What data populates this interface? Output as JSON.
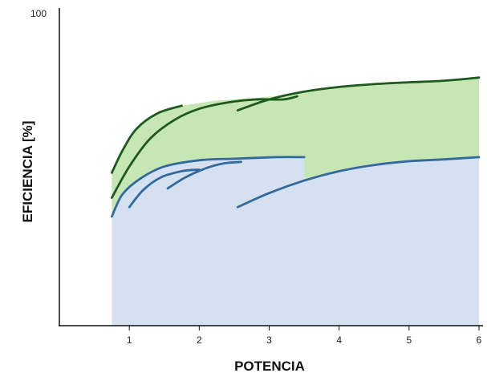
{
  "chart_data": {
    "type": "line",
    "title": "",
    "xlabel": "POTENCIA",
    "ylabel": "EFICIENCIA [%]",
    "xlim": [
      0,
      6
    ],
    "ylim": [
      0,
      100
    ],
    "x_ticks": [
      1,
      2,
      3,
      4,
      5,
      6
    ],
    "y_ticks": [
      100
    ],
    "grid": false,
    "legend": "none",
    "colors": {
      "green_fill": "#c6e6b3",
      "blue_fill": "#d5e1f1",
      "green_line": "#1e5a1e",
      "blue_line": "#336a9e"
    },
    "areas": [
      {
        "color": "#c6e6b3",
        "points": [
          [
            0.75,
            49
          ],
          [
            0.9,
            56
          ],
          [
            1.1,
            63
          ],
          [
            1.4,
            68
          ],
          [
            1.75,
            70.5
          ],
          [
            2.2,
            72
          ],
          [
            2.8,
            73
          ],
          [
            3.1,
            73.6
          ],
          [
            3.5,
            75
          ],
          [
            4,
            76.5
          ],
          [
            4.5,
            77.4
          ],
          [
            5,
            78
          ],
          [
            5.5,
            78.5
          ],
          [
            6,
            79.5
          ],
          [
            6,
            54
          ],
          [
            5.5,
            53.5
          ],
          [
            5,
            52.8
          ],
          [
            4.5,
            52
          ],
          [
            4,
            50
          ],
          [
            3.5,
            47
          ],
          [
            3.5,
            54
          ],
          [
            3.1,
            54
          ],
          [
            2.5,
            53.5
          ],
          [
            2,
            53
          ],
          [
            1.5,
            51
          ],
          [
            1.15,
            47
          ],
          [
            0.9,
            42
          ],
          [
            0.75,
            35
          ]
        ]
      },
      {
        "color": "#d5e1f1",
        "points": [
          [
            0.75,
            35
          ],
          [
            0.9,
            42
          ],
          [
            1.15,
            47
          ],
          [
            1.5,
            51
          ],
          [
            2,
            53
          ],
          [
            2.5,
            53.5
          ],
          [
            3.1,
            54
          ],
          [
            3.5,
            54
          ],
          [
            3.5,
            47
          ],
          [
            4,
            50
          ],
          [
            4.5,
            52
          ],
          [
            5,
            52.8
          ],
          [
            5.5,
            53.5
          ],
          [
            6,
            54
          ],
          [
            6,
            0
          ],
          [
            0.75,
            0
          ]
        ]
      }
    ],
    "series": [
      {
        "color": "#1e5a1e",
        "points": [
          [
            0.75,
            49
          ],
          [
            0.9,
            56
          ],
          [
            1.1,
            63
          ],
          [
            1.4,
            68
          ],
          [
            1.75,
            70.5
          ]
        ]
      },
      {
        "color": "#1e5a1e",
        "points": [
          [
            0.75,
            41
          ],
          [
            1.0,
            51
          ],
          [
            1.3,
            60
          ],
          [
            1.65,
            66
          ],
          [
            2.0,
            69.5
          ],
          [
            2.4,
            71.5
          ],
          [
            2.8,
            72.5
          ],
          [
            3.2,
            72.5
          ],
          [
            3.4,
            73.5
          ]
        ]
      },
      {
        "color": "#1e5a1e",
        "points": [
          [
            2.55,
            69
          ],
          [
            3.0,
            72.5
          ],
          [
            3.5,
            75
          ],
          [
            4,
            76.5
          ],
          [
            4.5,
            77.4
          ],
          [
            5,
            78
          ],
          [
            5.5,
            78.5
          ],
          [
            6,
            79.5
          ]
        ]
      },
      {
        "color": "#336a9e",
        "points": [
          [
            0.75,
            35
          ],
          [
            0.9,
            42
          ],
          [
            1.15,
            47
          ],
          [
            1.5,
            51
          ],
          [
            2,
            53
          ],
          [
            2.5,
            53.5
          ],
          [
            3.1,
            54
          ],
          [
            3.5,
            54
          ]
        ]
      },
      {
        "color": "#336a9e",
        "points": [
          [
            1.0,
            38
          ],
          [
            1.2,
            43.5
          ],
          [
            1.45,
            47.5
          ],
          [
            1.75,
            49.5
          ],
          [
            2.0,
            50
          ]
        ]
      },
      {
        "color": "#336a9e",
        "points": [
          [
            1.55,
            44
          ],
          [
            1.8,
            47.5
          ],
          [
            2.1,
            50.5
          ],
          [
            2.35,
            52
          ],
          [
            2.6,
            52.5
          ]
        ]
      },
      {
        "color": "#336a9e",
        "points": [
          [
            2.55,
            38
          ],
          [
            3.0,
            42.5
          ],
          [
            3.5,
            46.5
          ],
          [
            4,
            49.5
          ],
          [
            4.5,
            51.5
          ],
          [
            5,
            52.7
          ],
          [
            5.5,
            53.3
          ],
          [
            6,
            54
          ]
        ]
      }
    ]
  }
}
